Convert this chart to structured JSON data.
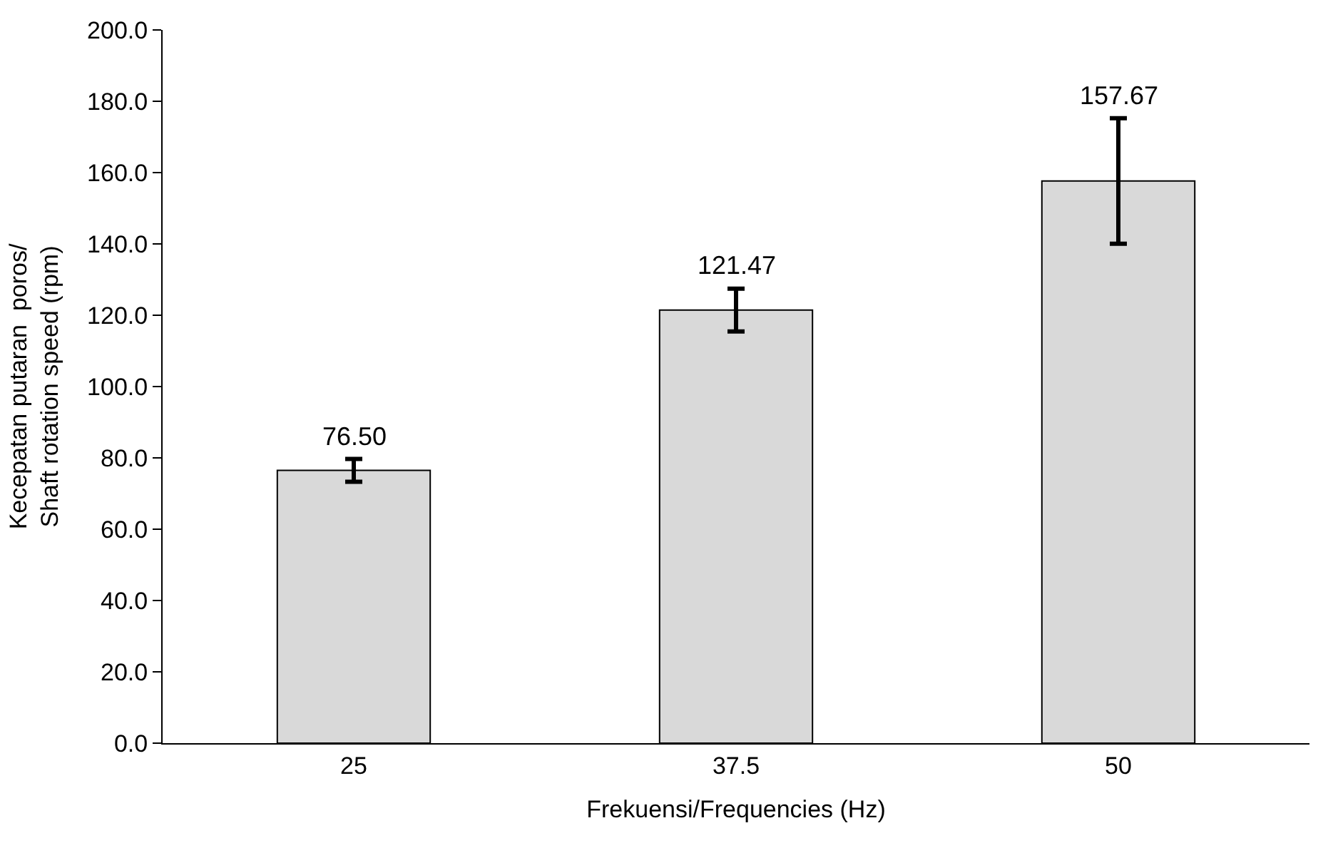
{
  "chart_data": {
    "type": "bar",
    "xlabel": "Frekuensi/Frequencies (Hz)",
    "ylabel": "Kecepatan putaran  poros/\nShaft rotation speed (rpm)",
    "categories": [
      "25",
      "37.5",
      "50"
    ],
    "series": [
      {
        "color": "#d9d9d9",
        "values": [
          76.5,
          121.47,
          157.67
        ],
        "errors": [
          3.2,
          6,
          17.6
        ],
        "value_labels": [
          "76.50",
          "121.47",
          "157.67"
        ]
      }
    ],
    "ylim": [
      0,
      200
    ],
    "yticks": [
      {
        "value": 0,
        "label": "0.0"
      },
      {
        "value": 20,
        "label": "20.0"
      },
      {
        "value": 40,
        "label": "40.0"
      },
      {
        "value": 60,
        "label": "60.0"
      },
      {
        "value": 80,
        "label": "80.0"
      },
      {
        "value": 100,
        "label": "100.0"
      },
      {
        "value": 120,
        "label": "120.0"
      },
      {
        "value": 140,
        "label": "140.0"
      },
      {
        "value": 160,
        "label": "160.0"
      },
      {
        "value": 180,
        "label": "180.0"
      },
      {
        "value": 200,
        "label": "200.0"
      }
    ]
  }
}
